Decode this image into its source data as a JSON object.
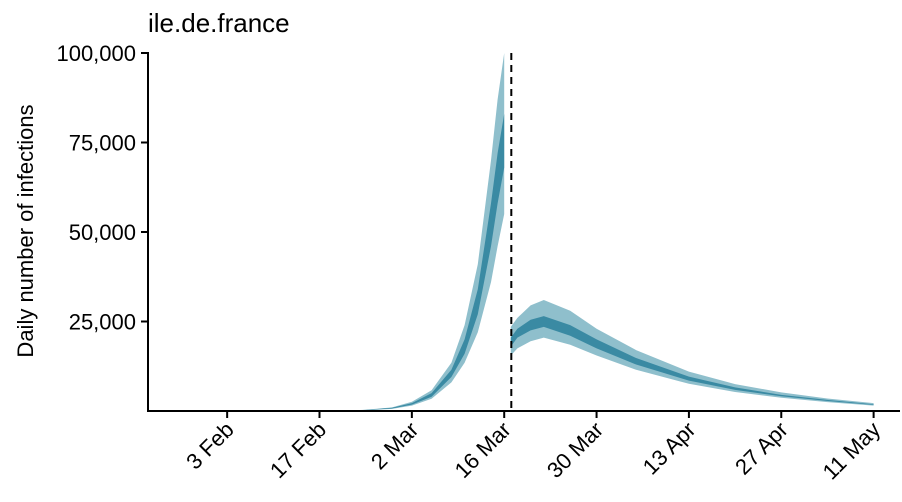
{
  "chart_data": {
    "type": "area",
    "title": "ile.de.france",
    "xlabel": "",
    "ylabel": "Daily number of infections",
    "ylim": [
      0,
      100000
    ],
    "y_ticks": [
      {
        "value": 25000,
        "label": "25,000"
      },
      {
        "value": 50000,
        "label": "50,000"
      },
      {
        "value": 75000,
        "label": "75,000"
      },
      {
        "value": 100000,
        "label": "100,000"
      }
    ],
    "x_ticks": [
      {
        "date": "2020-02-03",
        "label": "3 Feb"
      },
      {
        "date": "2020-02-17",
        "label": "17 Feb"
      },
      {
        "date": "2020-03-02",
        "label": "2 Mar"
      },
      {
        "date": "2020-03-16",
        "label": "16 Mar"
      },
      {
        "date": "2020-03-30",
        "label": "30 Mar"
      },
      {
        "date": "2020-04-13",
        "label": "13 Apr"
      },
      {
        "date": "2020-04-27",
        "label": "27 Apr"
      },
      {
        "date": "2020-05-11",
        "label": "11 May"
      }
    ],
    "x_range": [
      "2020-01-22",
      "2020-05-15"
    ],
    "intervention_date": "2020-03-17",
    "grid": false,
    "legend": "none",
    "colors": {
      "outer_band": "#8fbfcc",
      "inner_band": "#3a8aa3",
      "dashed_line": "#000000"
    },
    "series": [
      {
        "x": [
          "2020-02-20",
          "2020-02-24",
          "2020-02-28",
          "2020-03-02",
          "2020-03-05",
          "2020-03-08",
          "2020-03-10",
          "2020-03-12",
          "2020-03-14",
          "2020-03-15",
          "2020-03-16"
        ],
        "outer_low": [
          0,
          200,
          600,
          1500,
          3400,
          8000,
          13500,
          22000,
          36000,
          46000,
          55000
        ],
        "inner_low": [
          0,
          250,
          700,
          1800,
          4000,
          9500,
          16000,
          27000,
          46000,
          58000,
          68000
        ],
        "inner_high": [
          0,
          300,
          900,
          2200,
          5000,
          11500,
          20000,
          34000,
          58000,
          72000,
          83000
        ],
        "outer_high": [
          0,
          350,
          1000,
          2600,
          5800,
          13500,
          24000,
          41000,
          70000,
          87000,
          100000
        ]
      },
      {
        "x": [
          "2020-03-17",
          "2020-03-18",
          "2020-03-20",
          "2020-03-22",
          "2020-03-26",
          "2020-03-30",
          "2020-04-05",
          "2020-04-13",
          "2020-04-20",
          "2020-04-27",
          "2020-05-04",
          "2020-05-11"
        ],
        "outer_low": [
          15500,
          17500,
          19500,
          20500,
          18500,
          15500,
          11500,
          7600,
          5300,
          3700,
          2500,
          1500
        ],
        "inner_low": [
          18000,
          20500,
          22500,
          23500,
          21000,
          17500,
          13000,
          8500,
          5900,
          4100,
          2800,
          1700
        ],
        "inner_high": [
          20500,
          23000,
          25500,
          26500,
          24000,
          20000,
          14800,
          9600,
          6600,
          4500,
          3100,
          1900
        ],
        "outer_high": [
          23500,
          26000,
          29500,
          31000,
          28000,
          23000,
          17000,
          11000,
          7500,
          5200,
          3500,
          2200
        ]
      }
    ]
  }
}
